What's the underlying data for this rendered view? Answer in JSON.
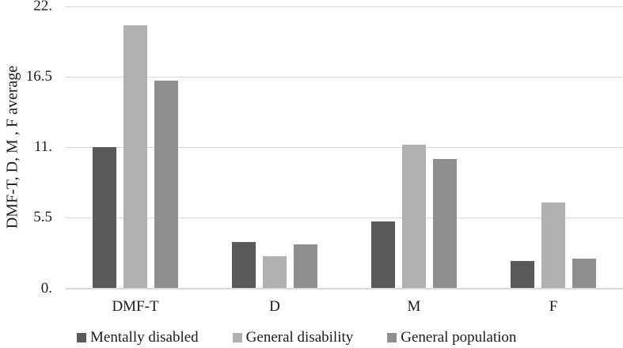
{
  "chart_data": {
    "type": "bar",
    "title": "",
    "xlabel": "",
    "ylabel": "DMF-T, D, M , F average",
    "ylim": [
      0,
      22
    ],
    "grid": true,
    "legend_position": "bottom",
    "background_color": "#ffffff",
    "gridline_color": "#d9d9d9",
    "axis_line_color": "#d9d9d9",
    "yticks": [
      {
        "label": "0.",
        "value": 0
      },
      {
        "label": "5.5",
        "value": 5.5
      },
      {
        "label": "11.",
        "value": 11
      },
      {
        "label": "16.5",
        "value": 16.5
      },
      {
        "label": "22.",
        "value": 22
      }
    ],
    "categories": [
      "DMF-T",
      "D",
      "M",
      "F"
    ],
    "series": [
      {
        "name": "Mentally disabled",
        "color": "#5a5a5a",
        "values": [
          11.0,
          3.6,
          5.2,
          2.1
        ]
      },
      {
        "name": "General disability",
        "color": "#b0b0b0",
        "values": [
          20.5,
          2.5,
          11.2,
          6.7
        ]
      },
      {
        "name": "General population",
        "color": "#8f8f8f",
        "values": [
          16.2,
          3.4,
          10.1,
          2.3
        ]
      }
    ]
  }
}
